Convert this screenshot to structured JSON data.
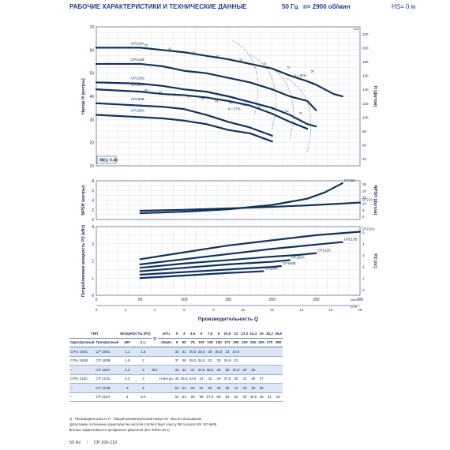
{
  "header": {
    "title": "РАБОЧИЕ ХАРАКТЕРИСТИКИ И ТЕХНИЧЕСКИЕ ДАННЫЕ",
    "freq": "50 Гц",
    "speed": "n= 2900 об/мин",
    "hs": "HS= 0 м"
  },
  "colors": {
    "curve": "#10325f",
    "grid": "#d4dbe6",
    "accent": "#1c3f8f"
  },
  "chart_data": [
    {
      "type": "line",
      "name": "head",
      "ylabel": "Напор H (метры)",
      "ylabel_right": "H (футов)",
      "xlim": [
        0,
        300
      ],
      "ylim": [
        10,
        70
      ],
      "yticks": [
        10,
        20,
        30,
        40,
        50,
        60,
        70
      ],
      "yticks_right": [
        40,
        60,
        80,
        100,
        120,
        140,
        160,
        180,
        200,
        220
      ],
      "unit_right_top": "feet",
      "mei": "MEI≥ 0.40",
      "efficiency_label": "η = 52%",
      "efficiency_label_2": "η = 57%",
      "curves_x": [
        0,
        50,
        75,
        100,
        125,
        150,
        175,
        200,
        220,
        240,
        250,
        270,
        280
      ],
      "series": [
        {
          "name": "CP210A",
          "values": [
            61,
            61,
            60,
            59,
            57.5,
            56,
            54,
            52,
            49,
            46.5,
            45,
            41,
            40
          ]
        },
        {
          "name": "CP210B",
          "values": [
            54,
            54,
            53,
            51,
            50,
            48,
            46,
            43,
            40,
            38,
            34,
            null,
            null
          ]
        },
        {
          "name": "CP210C",
          "values": [
            46,
            45.5,
            44.5,
            43,
            42,
            40,
            37.5,
            35,
            32,
            28,
            27,
            null,
            null
          ]
        },
        {
          "name": "CP160A",
          "values": [
            43,
            42,
            41,
            40.5,
            39.5,
            38,
            36,
            32.5,
            29,
            26,
            null,
            null,
            null
          ]
        },
        {
          "name": "CP160B",
          "values": [
            37,
            36,
            35.5,
            34.5,
            32,
            29,
            26.5,
            23,
            null,
            null,
            null,
            null,
            null
          ]
        },
        {
          "name": "CP160C",
          "values": [
            32,
            31,
            30.5,
            29.5,
            28,
            25.5,
            24,
            20.5,
            null,
            null,
            null,
            null,
            null
          ]
        }
      ],
      "eff_marks_top": [
        "55",
        "41",
        "45",
        "48",
        "50",
        "51",
        "51",
        "50"
      ],
      "eff_marks_mid": [
        "40",
        "44",
        "47",
        "50",
        "52",
        "54",
        "55",
        "55",
        "54",
        "53",
        "52",
        "51"
      ]
    },
    {
      "type": "line",
      "name": "npsh",
      "ylabel": "NPSH (метры)",
      "ylabel_right": "NPSH (футов)",
      "ylim": [
        0,
        8
      ],
      "yticks": [
        0,
        2,
        4,
        6,
        8
      ],
      "yticks_right": [
        0,
        5,
        10,
        15,
        20,
        25
      ],
      "series": [
        {
          "name": "CP160",
          "x": [
            50,
            100,
            150,
            200,
            240,
            260,
            280
          ],
          "values": [
            1.3,
            1.6,
            2.1,
            3.0,
            4.3,
            5.6,
            7.5
          ]
        },
        {
          "name": "CP210",
          "x": [
            50,
            100,
            150,
            200,
            250,
            300
          ],
          "values": [
            1.8,
            2.0,
            2.3,
            2.6,
            3.0,
            3.5
          ]
        }
      ]
    },
    {
      "type": "line",
      "name": "power",
      "ylabel": "Потребляемая мощность P2 (кВт)",
      "ylabel_right": "P2 (лс)",
      "xlabel": "Производительность Q",
      "xlim": [
        0,
        300
      ],
      "ylim": [
        0,
        4
      ],
      "yticks": [
        0,
        1,
        2,
        3,
        4
      ],
      "yticks_right": [
        0,
        1,
        2,
        3,
        4,
        5
      ],
      "x_unit_lmin": "l/min",
      "x_unit_m3h": "m³/h",
      "xticks": [
        0,
        50,
        100,
        150,
        200,
        250,
        300
      ],
      "xticks_m3h": [
        0,
        2,
        4,
        6,
        8,
        10,
        12,
        14,
        16,
        18
      ],
      "series": [
        {
          "name": "CP210A",
          "x": [
            50,
            100,
            150,
            200,
            250,
            300
          ],
          "values": [
            2.1,
            2.5,
            2.9,
            3.2,
            3.5,
            3.7
          ]
        },
        {
          "name": "CP210B",
          "x": [
            50,
            100,
            150,
            200,
            250,
            280
          ],
          "values": [
            1.8,
            2.1,
            2.4,
            2.7,
            2.95,
            3.1
          ]
        },
        {
          "name": "CP210C",
          "x": [
            50,
            100,
            150,
            200,
            230,
            250
          ],
          "values": [
            1.6,
            1.85,
            2.05,
            2.25,
            2.35,
            2.45
          ]
        },
        {
          "name": "CP160A",
          "x": [
            50,
            100,
            150,
            200,
            220
          ],
          "values": [
            1.4,
            1.6,
            1.8,
            1.95,
            2.05
          ]
        },
        {
          "name": "CP160B",
          "x": [
            50,
            100,
            150,
            200,
            210
          ],
          "values": [
            1.2,
            1.35,
            1.5,
            1.65,
            1.7
          ]
        },
        {
          "name": "CP160C",
          "x": [
            50,
            100,
            150,
            190
          ],
          "values": [
            1.0,
            1.15,
            1.3,
            1.4
          ]
        }
      ]
    }
  ],
  "table": {
    "h_type": "ТИП",
    "h_power": "МОЩНОСТЬ (P2)",
    "h_single": "Однофазный",
    "h_three": "Трехфазный",
    "h_kw": "кВт",
    "h_hp": "л.с.",
    "h_q": "Q",
    "h_m3h": "м³/ч",
    "h_lmin": "л/мин",
    "h_ie": "IE3",
    "h_h": "H",
    "h_m": "метры",
    "q_m3h": [
      "0",
      "3",
      "4,5",
      "6",
      "7,5",
      "9",
      "10,5",
      "12",
      "13,2",
      "14,4",
      "15",
      "16,2",
      "16,8"
    ],
    "q_lmin": [
      "0",
      "50",
      "75",
      "100",
      "125",
      "150",
      "175",
      "200",
      "220",
      "240",
      "250",
      "270",
      "280"
    ],
    "rows": [
      {
        "single": "CPm 160C",
        "three": "CP 160C",
        "kw": "1,1",
        "hp": "1,5",
        "h": [
          "32",
          "31",
          "30,5",
          "29,5",
          "28",
          "25,5",
          "24",
          "20,5",
          "",
          "",
          "",
          "",
          ""
        ]
      },
      {
        "single": "CPm 160B",
        "three": "CP 160B",
        "kw": "1,5",
        "hp": "2",
        "h": [
          "37",
          "36",
          "35,5",
          "34,5",
          "32",
          "29",
          "26,5",
          "23",
          "",
          "",
          "",
          "",
          ""
        ]
      },
      {
        "single": "–",
        "three": "CP 160A",
        "kw": "2,2",
        "hp": "3",
        "h": [
          "43",
          "42",
          "41",
          "40,5",
          "39,5",
          "38",
          "36",
          "32,5",
          "29",
          "26",
          "",
          "",
          ""
        ]
      },
      {
        "single": "CPm 210C",
        "three": "CP 210C",
        "kw": "2,2",
        "hp": "3",
        "h": [
          "46",
          "45,5",
          "44,5",
          "43",
          "42",
          "40",
          "37,5",
          "35",
          "32",
          "28",
          "27",
          "",
          ""
        ]
      },
      {
        "single": "–",
        "three": "CP 210B",
        "kw": "3",
        "hp": "4",
        "h": [
          "54",
          "54",
          "53",
          "51",
          "50",
          "48",
          "46",
          "43",
          "40",
          "38",
          "34",
          "",
          ""
        ]
      },
      {
        "single": "–",
        "three": "CP 210A",
        "kw": "4",
        "hp": "5,5",
        "h": [
          "61",
          "61",
          "60",
          "59",
          "57,5",
          "56",
          "54",
          "52",
          "49",
          "46,5",
          "45",
          "41",
          "40"
        ]
      }
    ]
  },
  "notes": {
    "line1": "Q - Производительность   H - Общий манометрический напор   HS - Высота всасывания",
    "line2": "Допустимое отклонение характеристик насосов соответствует классу 3B согласно EN ISO 9906.",
    "line3": "■ Класс эффективности трехфазного двигателя (IEC 60034-30-1)"
  },
  "footer": {
    "hz": "50 Hz",
    "model": "CP 160-210"
  }
}
